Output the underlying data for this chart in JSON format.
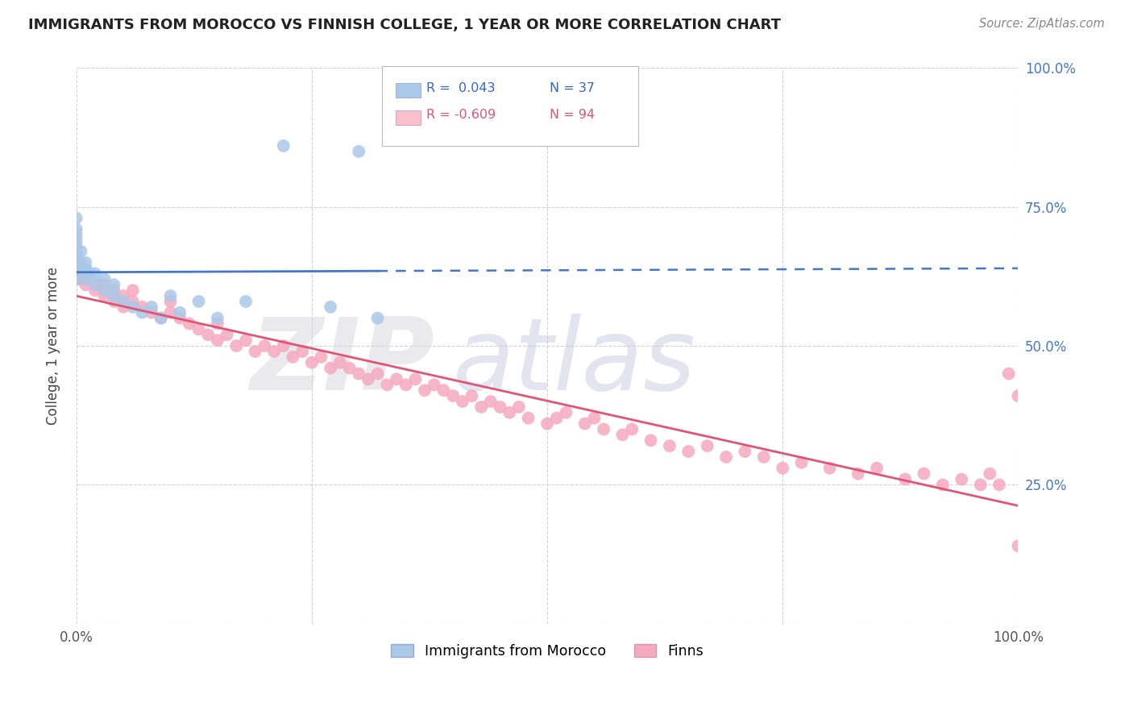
{
  "title": "IMMIGRANTS FROM MOROCCO VS FINNISH COLLEGE, 1 YEAR OR MORE CORRELATION CHART",
  "source": "Source: ZipAtlas.com",
  "ylabel": "College, 1 year or more",
  "xlim": [
    0.0,
    1.0
  ],
  "ylim": [
    0.0,
    1.0
  ],
  "x_tick_labels": [
    "0.0%",
    "",
    "",
    "",
    "100.0%"
  ],
  "y_tick_labels": [
    "",
    "25.0%",
    "50.0%",
    "75.0%",
    "100.0%"
  ],
  "legend_blue_R": "R =  0.043",
  "legend_blue_N": "N = 37",
  "legend_pink_R": "R = -0.609",
  "legend_pink_N": "N = 94",
  "blue_line_color": "#4477cc",
  "pink_line_color": "#e05575",
  "blue_scatter_color": "#aac8e8",
  "pink_scatter_color": "#f5aabf",
  "legend_text_color": "#3366cc",
  "legend_pink_text_color": "#e05575",
  "blue_points_x": [
    0.0,
    0.0,
    0.0,
    0.0,
    0.0,
    0.0,
    0.0,
    0.0,
    0.0,
    0.0,
    0.005,
    0.005,
    0.005,
    0.01,
    0.01,
    0.01,
    0.015,
    0.02,
    0.02,
    0.03,
    0.03,
    0.04,
    0.04,
    0.05,
    0.06,
    0.07,
    0.08,
    0.09,
    0.1,
    0.11,
    0.13,
    0.15,
    0.18,
    0.22,
    0.27,
    0.3,
    0.32
  ],
  "blue_points_y": [
    0.62,
    0.64,
    0.65,
    0.66,
    0.67,
    0.68,
    0.69,
    0.7,
    0.71,
    0.73,
    0.63,
    0.65,
    0.67,
    0.62,
    0.64,
    0.65,
    0.63,
    0.61,
    0.63,
    0.6,
    0.62,
    0.59,
    0.61,
    0.58,
    0.57,
    0.56,
    0.57,
    0.55,
    0.59,
    0.56,
    0.58,
    0.55,
    0.58,
    0.86,
    0.57,
    0.85,
    0.55
  ],
  "pink_points_x": [
    0.0,
    0.0,
    0.0,
    0.0,
    0.0,
    0.005,
    0.005,
    0.01,
    0.01,
    0.015,
    0.02,
    0.025,
    0.03,
    0.03,
    0.04,
    0.04,
    0.05,
    0.05,
    0.06,
    0.06,
    0.07,
    0.08,
    0.09,
    0.1,
    0.1,
    0.11,
    0.12,
    0.13,
    0.14,
    0.15,
    0.15,
    0.16,
    0.17,
    0.18,
    0.19,
    0.2,
    0.21,
    0.22,
    0.23,
    0.24,
    0.25,
    0.26,
    0.27,
    0.28,
    0.29,
    0.3,
    0.31,
    0.32,
    0.33,
    0.34,
    0.35,
    0.36,
    0.37,
    0.38,
    0.39,
    0.4,
    0.41,
    0.42,
    0.43,
    0.44,
    0.45,
    0.46,
    0.47,
    0.48,
    0.5,
    0.51,
    0.52,
    0.54,
    0.55,
    0.56,
    0.58,
    0.59,
    0.61,
    0.63,
    0.65,
    0.67,
    0.69,
    0.71,
    0.73,
    0.75,
    0.77,
    0.8,
    0.83,
    0.85,
    0.88,
    0.9,
    0.92,
    0.94,
    0.96,
    0.97,
    0.98,
    0.99,
    1.0,
    1.0
  ],
  "pink_points_y": [
    0.63,
    0.64,
    0.65,
    0.66,
    0.67,
    0.62,
    0.64,
    0.61,
    0.63,
    0.62,
    0.6,
    0.61,
    0.59,
    0.61,
    0.58,
    0.6,
    0.57,
    0.59,
    0.58,
    0.6,
    0.57,
    0.56,
    0.55,
    0.56,
    0.58,
    0.55,
    0.54,
    0.53,
    0.52,
    0.51,
    0.54,
    0.52,
    0.5,
    0.51,
    0.49,
    0.5,
    0.49,
    0.5,
    0.48,
    0.49,
    0.47,
    0.48,
    0.46,
    0.47,
    0.46,
    0.45,
    0.44,
    0.45,
    0.43,
    0.44,
    0.43,
    0.44,
    0.42,
    0.43,
    0.42,
    0.41,
    0.4,
    0.41,
    0.39,
    0.4,
    0.39,
    0.38,
    0.39,
    0.37,
    0.36,
    0.37,
    0.38,
    0.36,
    0.37,
    0.35,
    0.34,
    0.35,
    0.33,
    0.32,
    0.31,
    0.32,
    0.3,
    0.31,
    0.3,
    0.28,
    0.29,
    0.28,
    0.27,
    0.28,
    0.26,
    0.27,
    0.25,
    0.26,
    0.25,
    0.27,
    0.25,
    0.45,
    0.41,
    0.14
  ]
}
